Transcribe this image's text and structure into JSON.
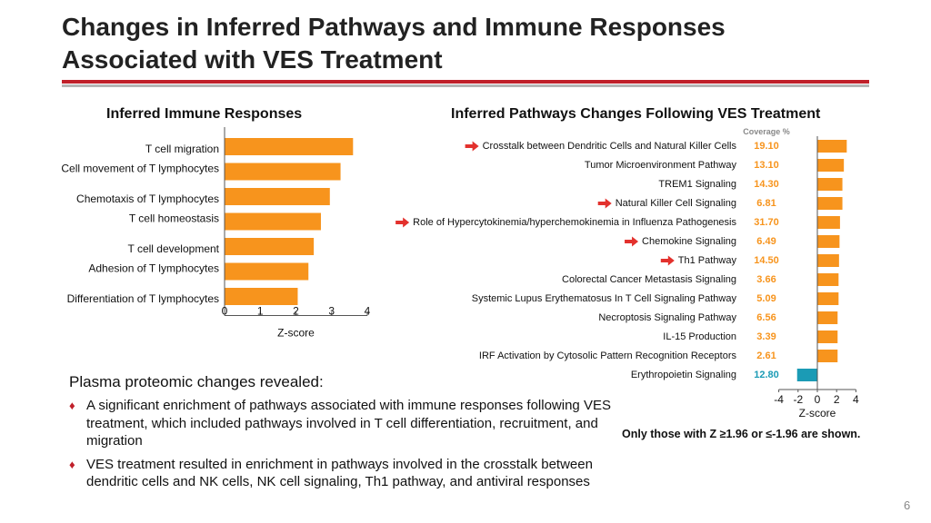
{
  "slide": {
    "title_line1": "Changes in Inferred Pathways and Immune Responses",
    "title_line2": "Associated with VES Treatment",
    "page_number": "6",
    "accent_color": "#c0202a",
    "rule_color": "#b5b5b5"
  },
  "summary": {
    "heading": "Plasma proteomic changes revealed:",
    "bullet_glyph": "♦",
    "bullets": [
      "A significant enrichment of pathways associated with immune responses following VES treatment, which included pathways involved in T cell differentiation, recruitment, and migration",
      "VES treatment resulted in enrichment in pathways involved in the crosstalk between dendritic cells and NK cells, NK cell signaling, Th1 pathway, and antiviral responses"
    ]
  },
  "footnote": "Only those with Z ≥1.96 or ≤-1.96 are shown.",
  "chart_data": [
    {
      "type": "bar",
      "orientation": "horizontal",
      "title": "Inferred Immune Responses",
      "categories": [
        "T cell migration",
        "Cell movement of T lymphocytes",
        "Chemotaxis of T lymphocytes",
        "T cell homeostasis",
        "T cell development",
        "Adhesion of T lymphocytes",
        "Differentiation of T lymphocytes"
      ],
      "values": [
        3.6,
        3.25,
        2.95,
        2.7,
        2.5,
        2.35,
        2.05
      ],
      "xlabel": "Z-score",
      "xlim": [
        0,
        4
      ],
      "xticks": [
        0,
        1,
        2,
        3,
        4
      ],
      "bar_color": "#f7941d"
    },
    {
      "type": "bar",
      "orientation": "horizontal",
      "title": "Inferred Pathways Changes Following VES Treatment",
      "categories": [
        "Crosstalk between Dendritic Cells and Natural Killer Cells",
        "Tumor Microenvironment Pathway",
        "TREM1 Signaling",
        "Natural Killer Cell Signaling",
        "Role of Hypercytokinemia/hyperchemokinemia in Influenza Pathogenesis",
        "Chemokine Signaling",
        "Th1 Pathway",
        "Colorectal Cancer Metastasis Signaling",
        "Systemic Lupus Erythematosus In T Cell Signaling Pathway",
        "Necroptosis Signaling Pathway",
        "IL-15 Production",
        "IRF Activation by Cytosolic Pattern Recognition Receptors",
        "Erythropoietin Signaling"
      ],
      "values": [
        3.05,
        2.75,
        2.6,
        2.6,
        2.35,
        2.3,
        2.25,
        2.2,
        2.2,
        2.1,
        2.1,
        2.1,
        -2.1
      ],
      "coverage_header": "Coverage %",
      "coverage": [
        "19.10",
        "13.10",
        "14.30",
        "6.81",
        "31.70",
        "6.49",
        "14.50",
        "3.66",
        "5.09",
        "6.56",
        "3.39",
        "2.61",
        "12.80"
      ],
      "highlighted": [
        true,
        false,
        false,
        true,
        true,
        true,
        true,
        false,
        false,
        false,
        false,
        false,
        false
      ],
      "xlabel": "Z-score",
      "xlim": [
        -4,
        4
      ],
      "xticks": [
        -4,
        -2,
        0,
        2,
        4
      ],
      "positive_color": "#f7941d",
      "negative_color": "#1b9bb5",
      "arrow_color": "#e3312d"
    }
  ]
}
